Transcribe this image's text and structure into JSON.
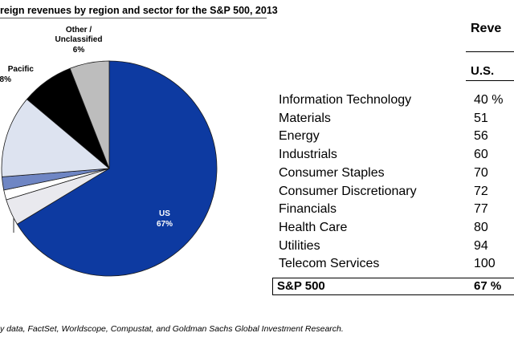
{
  "title": "reign revenues by region and sector for the S&P 500, 2013",
  "chart_data": [
    {
      "type": "pie",
      "slices": [
        {
          "label": "US",
          "value": 67,
          "display_value": "67%",
          "color": "#0d3aa1"
        },
        {
          "label": "",
          "value": 4,
          "display_value": "",
          "color": "#e9e9ee"
        },
        {
          "label": "",
          "value": 1.5,
          "display_value": "",
          "color": "#ffffff"
        },
        {
          "label": "",
          "value": 2,
          "display_value": "",
          "color": "#6f86c4"
        },
        {
          "label": "",
          "value": 12.5,
          "display_value": "",
          "color": "#dde3f0"
        },
        {
          "label": "Pacific",
          "value": 8,
          "display_value": "8%",
          "color": "#000000"
        },
        {
          "label": "Other /\nUnclassified",
          "value": 6,
          "display_value": "6%",
          "color": "#bdbdbd"
        }
      ]
    },
    {
      "type": "table",
      "headers": [
        "Reve",
        "U.S."
      ],
      "rows": [
        {
          "sector": "Information Technology",
          "value": "40 %"
        },
        {
          "sector": "Materials",
          "value": "51"
        },
        {
          "sector": "Energy",
          "value": "56"
        },
        {
          "sector": "Industrials",
          "value": "60"
        },
        {
          "sector": "Consumer Staples",
          "value": "70"
        },
        {
          "sector": "Consumer Discretionary",
          "value": "72"
        },
        {
          "sector": "Financials",
          "value": "77"
        },
        {
          "sector": "Health Care",
          "value": "80"
        },
        {
          "sector": "Utilities",
          "value": "94"
        },
        {
          "sector": "Telecom Services",
          "value": "100"
        }
      ],
      "total": {
        "label": "S&P 500",
        "value": "67 %"
      }
    }
  ],
  "pie_labels": {
    "us_name": "US",
    "us_value": "67%",
    "other_line1": "Other /",
    "other_line2": "Unclassified",
    "other_value": "6%",
    "pacific_name": "Pacific",
    "pacific_value": "8%"
  },
  "table": {
    "header_top": "Reve",
    "header_sub": "U.S."
  },
  "source": "y data, FactSet, Worldscope, Compustat, and Goldman Sachs Global Investment Research."
}
